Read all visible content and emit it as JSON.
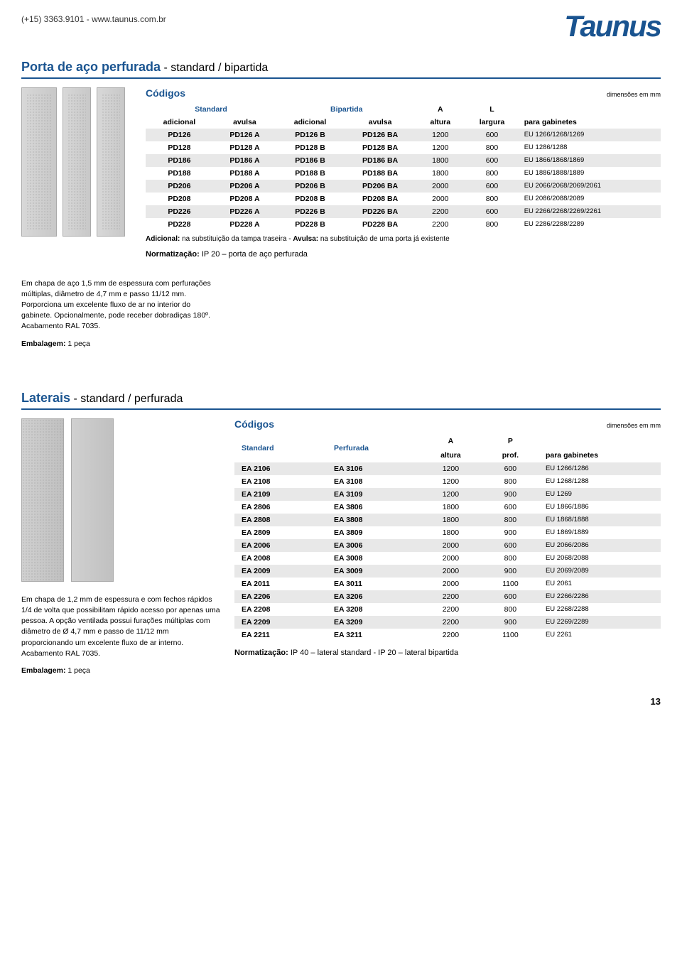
{
  "header": {
    "contact": "(+15) 3363.9101 - www.taunus.com.br",
    "logo": "Taunus"
  },
  "section1": {
    "title_blue": "Porta de aço perfurada",
    "title_sub": " - standard / bipartida",
    "codigos": "Códigos",
    "dim": "dimensões em mm",
    "grp": {
      "standard": "Standard",
      "bipartida": "Bipartida",
      "a": "A",
      "l": "L"
    },
    "cols": {
      "adicional": "adicional",
      "avulsa": "avulsa",
      "altura": "altura",
      "largura": "largura",
      "gab": "para gabinetes"
    },
    "rows": [
      [
        "PD126",
        "PD126 A",
        "PD126 B",
        "PD126 BA",
        "1200",
        "600",
        "EU 1266/1268/1269"
      ],
      [
        "PD128",
        "PD128 A",
        "PD128 B",
        "PD128 BA",
        "1200",
        "800",
        "EU 1286/1288"
      ],
      [
        "PD186",
        "PD186 A",
        "PD186 B",
        "PD186 BA",
        "1800",
        "600",
        "EU 1866/1868/1869"
      ],
      [
        "PD188",
        "PD188 A",
        "PD188 B",
        "PD188 BA",
        "1800",
        "800",
        "EU 1886/1888/1889"
      ],
      [
        "PD206",
        "PD206 A",
        "PD206 B",
        "PD206 BA",
        "2000",
        "600",
        "EU 2066/2068/2069/2061"
      ],
      [
        "PD208",
        "PD208 A",
        "PD208 B",
        "PD208 BA",
        "2000",
        "800",
        "EU 2086/2088/2089"
      ],
      [
        "PD226",
        "PD226 A",
        "PD226 B",
        "PD226 BA",
        "2200",
        "600",
        "EU 2266/2268/2269/2261"
      ],
      [
        "PD228",
        "PD228 A",
        "PD228 B",
        "PD228 BA",
        "2200",
        "800",
        "EU 2286/2288/2289"
      ]
    ],
    "note_b1": "Adicional:",
    "note_t1": " na substituição da tampa traseira - ",
    "note_b2": "Avulsa:",
    "note_t2": " na substituição de uma porta já existente",
    "norm_b": "Normatização:",
    "norm_t": " IP 20 – porta de aço perfurada",
    "desc": "Em chapa de aço 1,5 mm de espessura com perfurações múltiplas, diâmetro de 4,7 mm e passo 11/12 mm. Porporciona um excelente fluxo de ar no interior do gabinete. Opcionalmente, pode receber dobradiças 180º. Acabamento RAL 7035.",
    "emb_b": "Embalagem:",
    "emb_t": " 1 peça"
  },
  "section2": {
    "title_blue": "Laterais",
    "title_sub": " - standard / perfurada",
    "codigos": "Códigos",
    "dim": "dimensões em mm",
    "cols": {
      "standard": "Standard",
      "perfurada": "Perfurada",
      "a": "A",
      "p": "P",
      "altura": "altura",
      "prof": "prof.",
      "gab": "para gabinetes"
    },
    "rows": [
      [
        "EA 2106",
        "EA 3106",
        "1200",
        "600",
        "EU 1266/1286"
      ],
      [
        "EA 2108",
        "EA 3108",
        "1200",
        "800",
        "EU 1268/1288"
      ],
      [
        "EA 2109",
        "EA 3109",
        "1200",
        "900",
        "EU 1269"
      ],
      [
        "EA 2806",
        "EA 3806",
        "1800",
        "600",
        "EU 1866/1886"
      ],
      [
        "EA 2808",
        "EA 3808",
        "1800",
        "800",
        "EU 1868/1888"
      ],
      [
        "EA 2809",
        "EA 3809",
        "1800",
        "900",
        "EU 1869/1889"
      ],
      [
        "EA 2006",
        "EA 3006",
        "2000",
        "600",
        "EU 2066/2086"
      ],
      [
        "EA 2008",
        "EA 3008",
        "2000",
        "800",
        "EU 2068/2088"
      ],
      [
        "EA 2009",
        "EA 3009",
        "2000",
        "900",
        "EU 2069/2089"
      ],
      [
        "EA 2011",
        "EA 3011",
        "2000",
        "1100",
        "EU 2061"
      ],
      [
        "EA 2206",
        "EA 3206",
        "2200",
        "600",
        "EU 2266/2286"
      ],
      [
        "EA 2208",
        "EA 3208",
        "2200",
        "800",
        "EU 2268/2288"
      ],
      [
        "EA 2209",
        "EA 3209",
        "2200",
        "900",
        "EU 2269/2289"
      ],
      [
        "EA 2211",
        "EA 3211",
        "2200",
        "1100",
        "EU 2261"
      ]
    ],
    "norm_b": "Normatização:",
    "norm_t": " IP 40 – lateral standard - IP 20 – lateral bipartida",
    "desc": "Em chapa de 1,2 mm de espessura e com fechos rápidos 1/4 de volta que possibilitam rápido acesso por apenas uma pessoa. A opção ventilada possui furações múltiplas com diâmetro de Ø 4,7 mm e passo de 11/12 mm proporcionando um excelente fluxo de ar interno. Acabamento RAL 7035.",
    "emb_b": "Embalagem:",
    "emb_t": " 1 peça"
  },
  "pagenum": "13"
}
